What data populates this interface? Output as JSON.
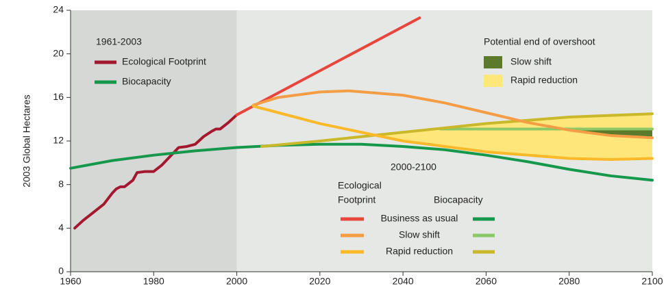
{
  "chart_data": {
    "type": "line",
    "y_label": "2003 Global Hectares",
    "xlim": [
      1960,
      2100
    ],
    "ylim": [
      0,
      24
    ],
    "xticks": [
      1960,
      1980,
      2000,
      2020,
      2040,
      2060,
      2080,
      2100
    ],
    "yticks": [
      0,
      4,
      8,
      12,
      16,
      20,
      24
    ],
    "historic_shading": [
      1960,
      2000
    ],
    "historic": {
      "title": "1961-2003",
      "series": [
        {
          "name": "Ecological Footprint",
          "color": "#a4182f",
          "x": [
            1961,
            1963,
            1965,
            1967,
            1968,
            1970,
            1971,
            1972,
            1973,
            1975,
            1976,
            1978,
            1980,
            1982,
            1984,
            1986,
            1988,
            1990,
            1992,
            1994,
            1995,
            1996,
            1998,
            2000
          ],
          "values": [
            4.0,
            4.7,
            5.3,
            5.9,
            6.2,
            7.2,
            7.6,
            7.8,
            7.8,
            8.4,
            9.1,
            9.2,
            9.2,
            9.8,
            10.6,
            11.4,
            11.5,
            11.7,
            12.4,
            12.9,
            13.1,
            13.1,
            13.7,
            14.4
          ]
        },
        {
          "name": "Biocapacity",
          "color": "#16984c",
          "x": [
            1960,
            1970,
            1980,
            1990,
            2000
          ],
          "values": [
            9.5,
            10.2,
            10.7,
            11.1,
            11.4
          ]
        }
      ]
    },
    "projection": {
      "title": "2000-2100",
      "footprint_label": [
        "Ecological",
        "Footprint"
      ],
      "biocapacity_label": "Biocapacity",
      "scenarios": [
        {
          "name": "Business as usual",
          "footprint": {
            "color": "#e8453c",
            "x": [
              2000,
              2044
            ],
            "values": [
              14.4,
              23.3
            ]
          },
          "biocapacity": {
            "color": "#16984c",
            "x": [
              2000,
              2010,
              2020,
              2030,
              2040,
              2050,
              2060,
              2070,
              2080,
              2090,
              2100
            ],
            "values": [
              11.4,
              11.6,
              11.7,
              11.7,
              11.5,
              11.2,
              10.7,
              10.1,
              9.4,
              8.8,
              8.4
            ]
          }
        },
        {
          "name": "Slow shift",
          "footprint": {
            "color": "#f59d45",
            "x": [
              2004,
              2010,
              2020,
              2027,
              2040,
              2050,
              2060,
              2070,
              2080,
              2090,
              2100
            ],
            "values": [
              15.3,
              16.0,
              16.5,
              16.6,
              16.2,
              15.5,
              14.6,
              13.7,
              13.0,
              12.5,
              12.3
            ]
          },
          "biocapacity": {
            "color": "#8cc866",
            "x": [
              2049,
              2100
            ],
            "values": [
              13.1,
              13.1
            ]
          }
        },
        {
          "name": "Rapid reduction",
          "footprint": {
            "color": "#fbb829",
            "x": [
              2004,
              2020,
              2040,
              2060,
              2080,
              2090,
              2100
            ],
            "values": [
              15.2,
              13.6,
              12.0,
              11.0,
              10.4,
              10.3,
              10.4
            ]
          },
          "biocapacity": {
            "color": "#c8b82a",
            "x": [
              2006,
              2020,
              2040,
              2060,
              2080,
              2100
            ],
            "values": [
              11.5,
              12.0,
              12.8,
              13.6,
              14.2,
              14.5
            ]
          }
        }
      ]
    },
    "overshoot": {
      "title": "Potential end of overshoot",
      "items": [
        {
          "name": "Slow shift",
          "color": "#5b7a2c"
        },
        {
          "name": "Rapid reduction",
          "color": "#ffe67a"
        }
      ]
    }
  }
}
